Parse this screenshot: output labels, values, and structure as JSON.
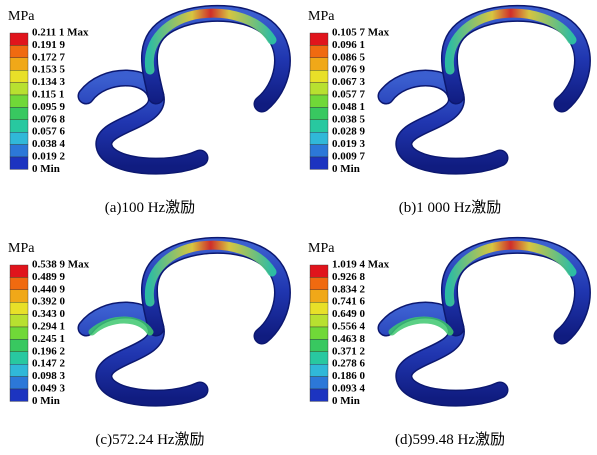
{
  "panels": [
    {
      "unit": "MPa",
      "legend": [
        "0.211 1 Max",
        "0.191 9",
        "0.172 7",
        "0.153 5",
        "0.134 3",
        "0.115 1",
        "0.095 9",
        "0.076 8",
        "0.057 6",
        "0.038 4",
        "0.019 2",
        "0 Min"
      ],
      "caption": "(a)100 Hz激励"
    },
    {
      "unit": "MPa",
      "legend": [
        "0.105 7 Max",
        "0.096 1",
        "0.086 5",
        "0.076 9",
        "0.067 3",
        "0.057 7",
        "0.048 1",
        "0.038 5",
        "0.028 9",
        "0.019 3",
        "0.009 7",
        "0 Min"
      ],
      "caption": "(b)1 000 Hz激励"
    },
    {
      "unit": "MPa",
      "legend": [
        "0.538 9 Max",
        "0.489 9",
        "0.440 9",
        "0.392 0",
        "0.343 0",
        "0.294 1",
        "0.245 1",
        "0.196 2",
        "0.147 2",
        "0.098 3",
        "0.049 3",
        "0 Min"
      ],
      "caption": "(c)572.24 Hz激励"
    },
    {
      "unit": "MPa",
      "legend": [
        "1.019 4 Max",
        "0.926 8",
        "0.834 2",
        "0.741 6",
        "0.649 0",
        "0.556 4",
        "0.463 8",
        "0.371 2",
        "0.278 6",
        "0.186 0",
        "0.093 4",
        "0 Min"
      ],
      "caption": "(d)599.48 Hz激励"
    }
  ]
}
